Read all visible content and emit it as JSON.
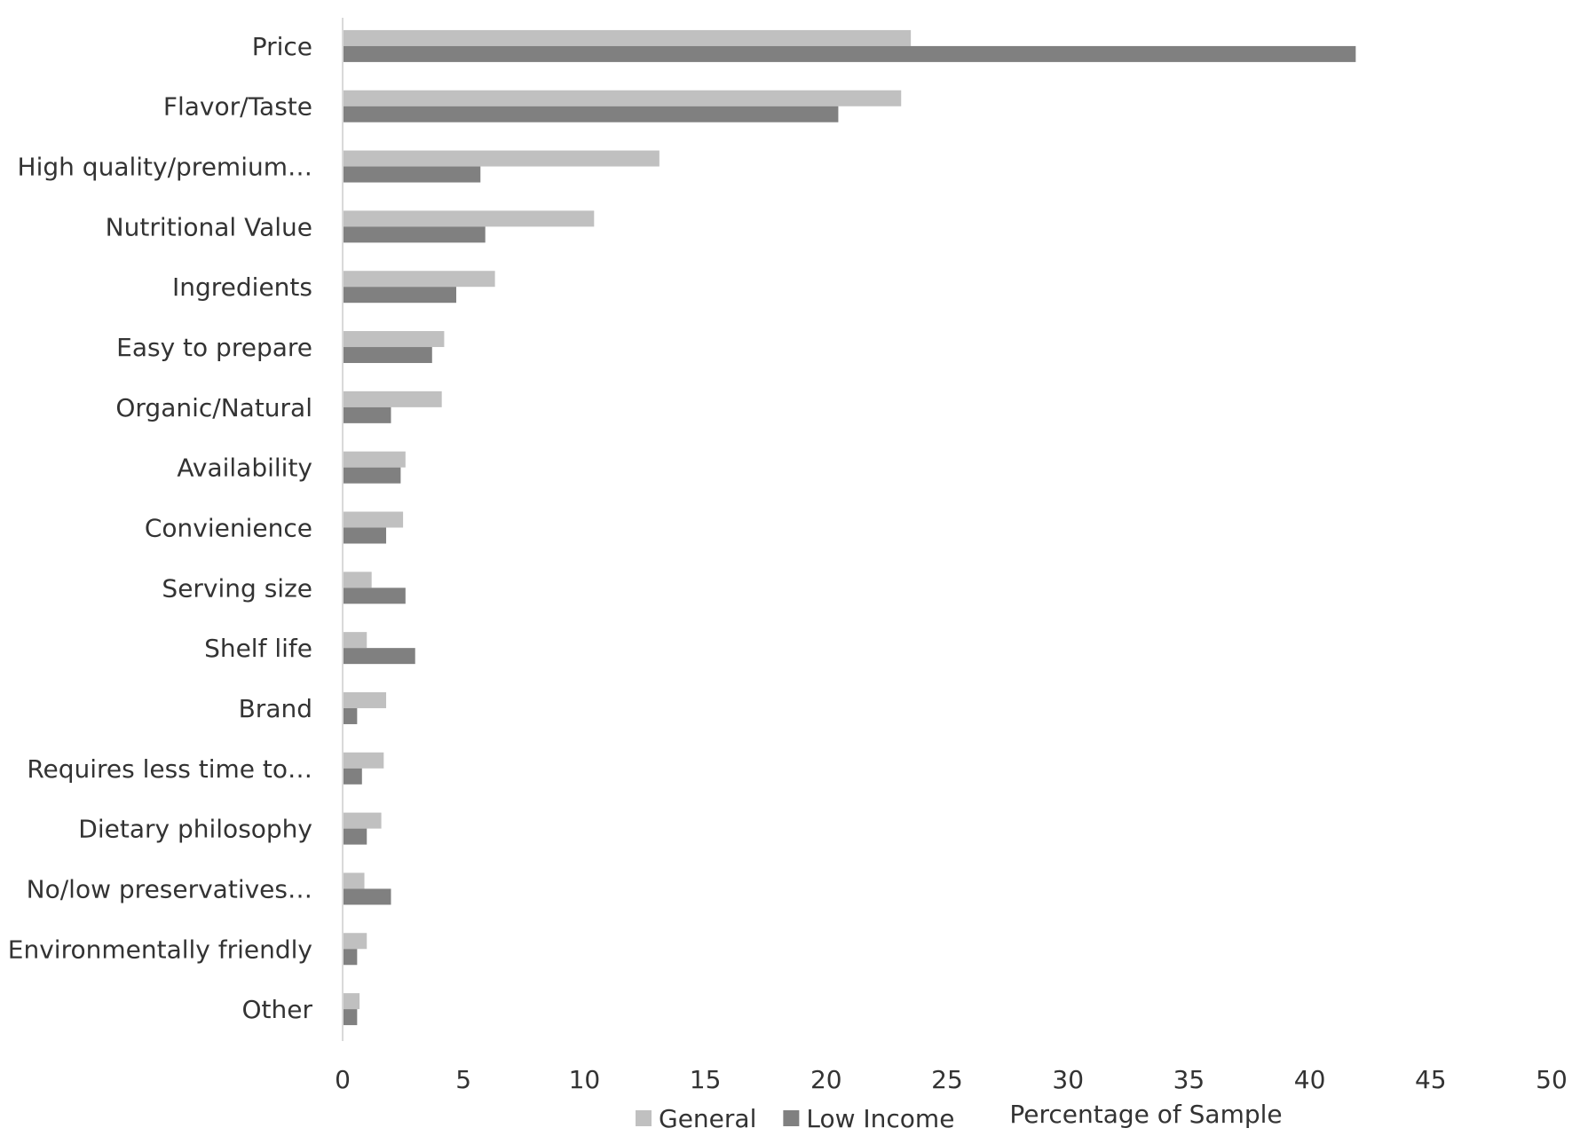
{
  "chart_data": {
    "type": "bar",
    "orientation": "horizontal",
    "x_label": "Percentage of Sample",
    "categories": [
      "Price",
      "Flavor/Taste",
      "High quality/premium…",
      "Nutritional Value",
      "Ingredients",
      "Easy to prepare",
      "Organic/Natural",
      "Availability",
      "Convienience",
      "Serving size",
      "Shelf life",
      "Brand",
      "Requires less time to…",
      "Dietary philosophy",
      "No/low preservatives…",
      "Environmentally friendly",
      "Other"
    ],
    "series": [
      {
        "name": "General",
        "color": "#c0c0c0",
        "values": [
          23.5,
          23.1,
          13.1,
          10.4,
          6.3,
          4.2,
          4.1,
          2.6,
          2.5,
          1.2,
          1.0,
          1.8,
          1.7,
          1.6,
          0.9,
          1.0,
          0.7
        ]
      },
      {
        "name": "Low Income",
        "color": "#808080",
        "values": [
          41.9,
          20.5,
          5.7,
          5.9,
          4.7,
          3.7,
          2.0,
          2.4,
          1.8,
          2.6,
          3.0,
          0.6,
          0.8,
          1.0,
          2.0,
          0.6,
          0.6
        ]
      }
    ],
    "xlim": [
      0,
      50
    ],
    "xticks": [
      0,
      5,
      10,
      15,
      20,
      25,
      30,
      35,
      40,
      45,
      50
    ],
    "grid": false,
    "legend": "bottom"
  }
}
